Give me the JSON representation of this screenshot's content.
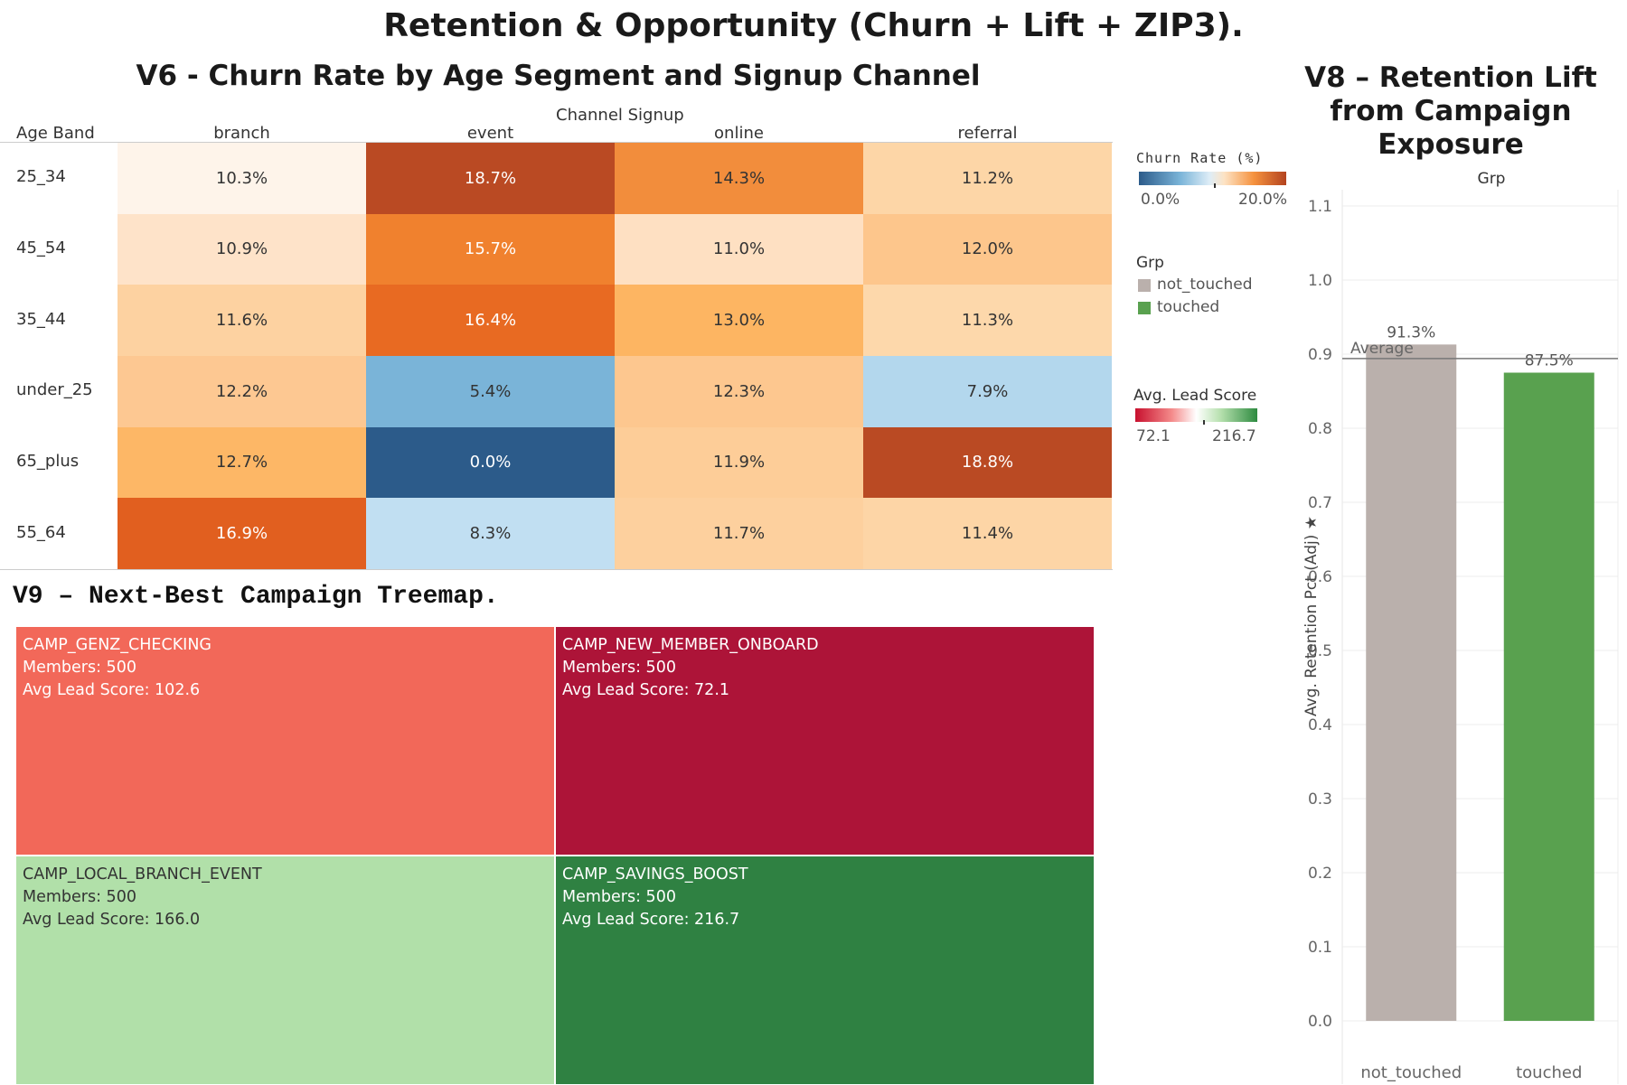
{
  "dashboard_title": "Retention & Opportunity (Churn + Lift + ZIP3).",
  "heatmap": {
    "title": "V6 - Churn Rate by Age Segment and Signup Channel",
    "row_header": "Age Band",
    "col_header": "Channel Signup",
    "columns": [
      "branch",
      "event",
      "online",
      "referral"
    ],
    "rows": [
      {
        "label": "25_34",
        "values": [
          "10.3%",
          "18.7%",
          "14.3%",
          "11.2%"
        ]
      },
      {
        "label": "45_54",
        "values": [
          "10.9%",
          "15.7%",
          "11.0%",
          "12.0%"
        ]
      },
      {
        "label": "35_44",
        "values": [
          "11.6%",
          "16.4%",
          "13.0%",
          "11.3%"
        ]
      },
      {
        "label": "under_25",
        "values": [
          "12.2%",
          "5.4%",
          "12.3%",
          "7.9%"
        ]
      },
      {
        "label": "65_plus",
        "values": [
          "12.7%",
          "0.0%",
          "11.9%",
          "18.8%"
        ]
      },
      {
        "label": "55_64",
        "values": [
          "16.9%",
          "8.3%",
          "11.7%",
          "11.4%"
        ]
      }
    ],
    "cell_colors": [
      [
        "#fef4ea",
        "#ba4a23",
        "#f28d3c",
        "#fdd6a7"
      ],
      [
        "#fee3c9",
        "#f0812e",
        "#fee0c2",
        "#fdc68c"
      ],
      [
        "#fdd2a1",
        "#e86a22",
        "#fdb562",
        "#fdd8ab"
      ],
      [
        "#fdc892",
        "#7ab4d8",
        "#fdc78f",
        "#b3d7ed"
      ],
      [
        "#fdb766",
        "#2c5b8a",
        "#fdcd98",
        "#ba4a23"
      ],
      [
        "#e15f1f",
        "#c1dff2",
        "#fdd09e",
        "#fdd5a6"
      ]
    ],
    "light_text_cells": [
      [
        0,
        1
      ],
      [
        1,
        1
      ],
      [
        2,
        1
      ],
      [
        4,
        1
      ],
      [
        4,
        3
      ],
      [
        5,
        0
      ]
    ]
  },
  "legends": {
    "churn": {
      "title": "Churn Rate (%)",
      "min_label": "0.0%",
      "max_label": "20.0%"
    },
    "group": {
      "title": "Grp",
      "items": [
        {
          "label": "not_touched",
          "color": "#bab0ac"
        },
        {
          "label": "touched",
          "color": "#59a14f"
        }
      ]
    },
    "lead": {
      "title": "Avg. Lead Score",
      "min_label": "72.1",
      "max_label": "216.7"
    }
  },
  "treemap": {
    "title": "V9 – Next-Best Campaign Treemap.",
    "tiles": [
      {
        "name": "CAMP_GENZ_CHECKING",
        "members": "Members:  500",
        "score": "Avg Lead Score: 102.6",
        "color": "#f26859",
        "text_color": "#ffffff"
      },
      {
        "name": "CAMP_NEW_MEMBER_ONBOARD",
        "members": "Members:  500",
        "score": "Avg Lead Score: 72.1",
        "color": "#ad1438",
        "text_color": "#ffffff"
      },
      {
        "name": "CAMP_LOCAL_BRANCH_EVENT",
        "members": "Members:  500",
        "score": "Avg Lead Score: 166.0",
        "color": "#b1e0a9",
        "text_color": "#333333"
      },
      {
        "name": "CAMP_SAVINGS_BOOST",
        "members": "Members:  500",
        "score": "Avg Lead Score: 216.7",
        "color": "#2f8142",
        "text_color": "#ffffff"
      }
    ]
  },
  "chart_data": [
    {
      "type": "heatmap",
      "title": "V6 - Churn Rate by Age Segment and Signup Channel",
      "xlabel": "Channel Signup",
      "ylabel": "Age Band",
      "x": [
        "branch",
        "event",
        "online",
        "referral"
      ],
      "y": [
        "25_34",
        "45_54",
        "35_44",
        "under_25",
        "65_plus",
        "55_64"
      ],
      "values": [
        [
          10.3,
          18.7,
          14.3,
          11.2
        ],
        [
          10.9,
          15.7,
          11.0,
          12.0
        ],
        [
          11.6,
          16.4,
          13.0,
          11.3
        ],
        [
          12.2,
          5.4,
          12.3,
          7.9
        ],
        [
          12.7,
          0.0,
          11.9,
          18.8
        ],
        [
          16.9,
          8.3,
          11.7,
          11.4
        ]
      ],
      "color_range": [
        0,
        20
      ]
    },
    {
      "type": "bar",
      "title": "V8 – Retention Lift from Campaign Exposure",
      "xlabel": "Grp",
      "ylabel": "Avg. Retention Pct (Adj) ★",
      "categories": [
        "not_touched",
        "touched"
      ],
      "values": [
        0.913,
        0.875
      ],
      "data_labels": [
        "91.3%",
        "87.5%"
      ],
      "colors": [
        "#bab0ac",
        "#59a14f"
      ],
      "ylim": [
        0,
        1.1
      ],
      "yticks": [
        "0.0",
        "0.1",
        "0.2",
        "0.3",
        "0.4",
        "0.5",
        "0.6",
        "0.7",
        "0.8",
        "0.9",
        "1.0",
        "1.1"
      ],
      "reference_line": {
        "label": "Average",
        "value": 0.894
      },
      "grid": true
    },
    {
      "type": "treemap",
      "title": "V9 – Next-Best Campaign Treemap.",
      "categories": [
        "CAMP_GENZ_CHECKING",
        "CAMP_NEW_MEMBER_ONBOARD",
        "CAMP_LOCAL_BRANCH_EVENT",
        "CAMP_SAVINGS_BOOST"
      ],
      "members": [
        500,
        500,
        500,
        500
      ],
      "avg_lead_score": [
        102.6,
        72.1,
        166.0,
        216.7
      ]
    }
  ]
}
